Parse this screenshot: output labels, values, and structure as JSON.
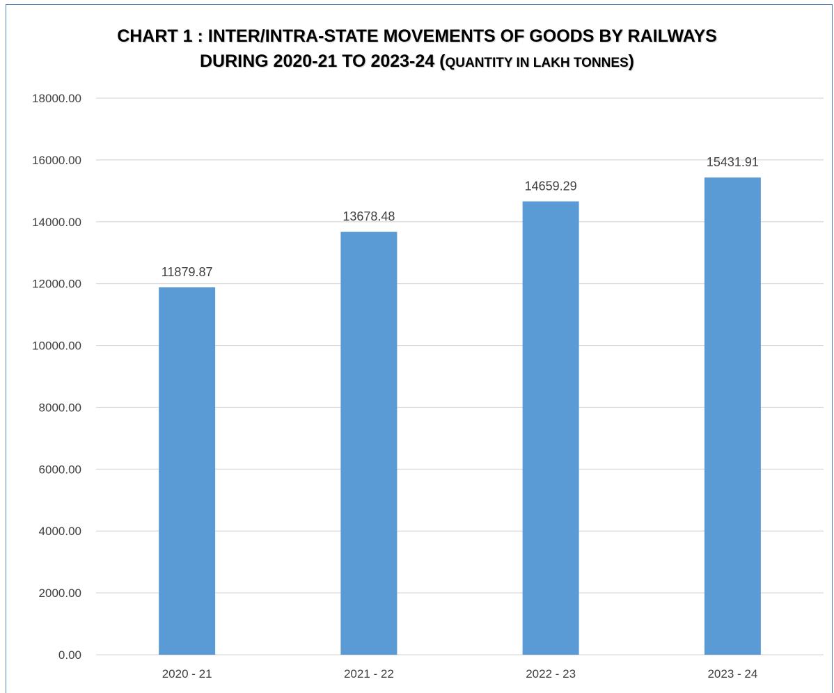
{
  "chart_data": {
    "type": "bar",
    "title_line1": "CHART 1 : INTER/INTRA-STATE MOVEMENTS OF GOODS BY RAILWAYS",
    "title_line2_main": "DURING 2020-21 TO 2023-24 (",
    "title_line2_small": "QUANTITY IN LAKH TONNES",
    "title_line2_end": ")",
    "categories": [
      "2020 - 21",
      "2021 - 22",
      "2022 - 23",
      "2023 - 24"
    ],
    "values": [
      11879.87,
      13678.48,
      14659.29,
      15431.91
    ],
    "data_labels": [
      "11879.87",
      "13678.48",
      "14659.29",
      "15431.91"
    ],
    "ylim": [
      0,
      18000
    ],
    "yticks": [
      "0.00",
      "2000.00",
      "4000.00",
      "6000.00",
      "8000.00",
      "10000.00",
      "12000.00",
      "14000.00",
      "16000.00",
      "18000.00"
    ],
    "ytick_values": [
      0,
      2000,
      4000,
      6000,
      8000,
      10000,
      12000,
      14000,
      16000,
      18000
    ],
    "grid": true,
    "legend": "none",
    "colors": {
      "bar": "#5b9bd5",
      "grid": "#d9d9d9",
      "border": "#4f81bd",
      "text": "#404040"
    }
  }
}
